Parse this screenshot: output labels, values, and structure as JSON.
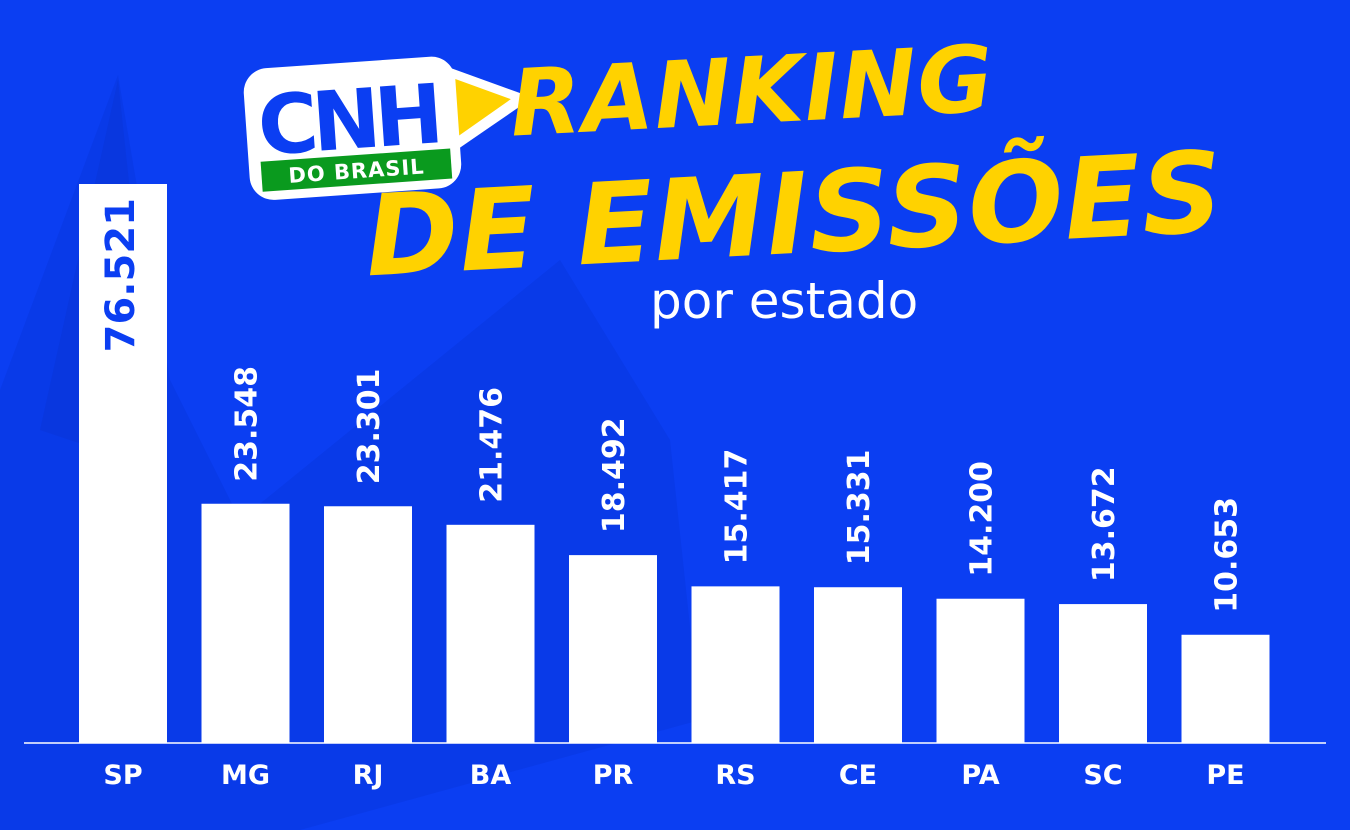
{
  "logo": {
    "main": "CNH",
    "sub": "DO BRASIL",
    "colors": {
      "yellow": "#ffd200",
      "green": "#0a9a1e",
      "blue": "#0b3ef2"
    }
  },
  "title": {
    "line1": "RANKING",
    "line2": "DE EMISSÕES",
    "subtitle": "por estado"
  },
  "colors": {
    "background": "#0b3ef2",
    "bars": "#ffffff",
    "title": "#ffd200",
    "label_inside": "#0b3ef2"
  },
  "chart_data": {
    "type": "bar",
    "categories": [
      "SP",
      "MG",
      "RJ",
      "BA",
      "PR",
      "RS",
      "CE",
      "PA",
      "SC",
      "PE"
    ],
    "values": [
      76521,
      23548,
      23301,
      21476,
      18492,
      15417,
      15331,
      14200,
      13672,
      10653
    ],
    "labels": [
      "76.521",
      "23.548",
      "23.301",
      "21.476",
      "18.492",
      "15.417",
      "15.331",
      "14.200",
      "13.672",
      "10.653"
    ],
    "title": "RANKING DE EMISSÕES por estado",
    "grid": false,
    "axis": "none"
  }
}
